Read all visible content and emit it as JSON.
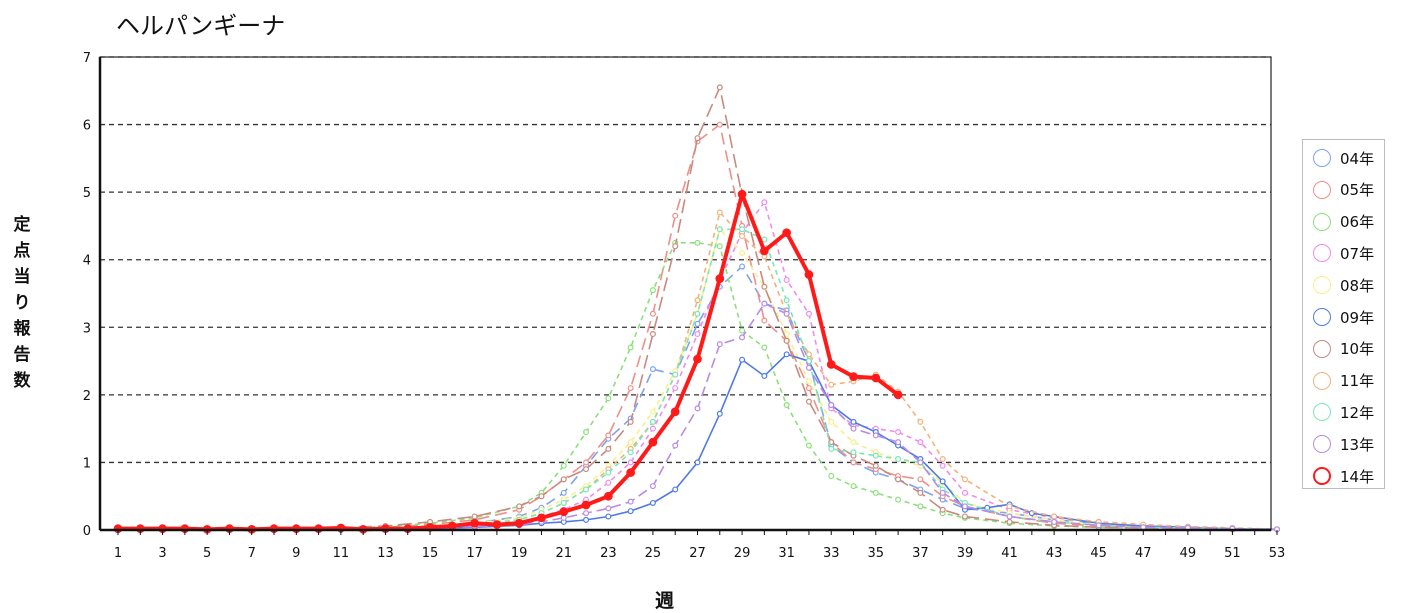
{
  "chart_data": {
    "type": "line",
    "title": "ヘルパンギーナ",
    "xlabel": "週",
    "ylabel": "定点当り報告数",
    "xlim": [
      1,
      53
    ],
    "ylim": [
      0,
      7
    ],
    "x_ticks": [
      1,
      3,
      5,
      7,
      9,
      11,
      13,
      15,
      17,
      19,
      21,
      23,
      25,
      27,
      29,
      31,
      33,
      35,
      37,
      39,
      41,
      43,
      45,
      47,
      49,
      51,
      53
    ],
    "y_ticks": [
      0,
      1,
      2,
      3,
      4,
      5,
      6,
      7
    ],
    "grid": "horizontal-dashed",
    "legend_position": "right",
    "series": [
      {
        "name": "04年",
        "color": "#7da3f0",
        "dash": "10,6",
        "x": [
          1,
          3,
          5,
          7,
          9,
          11,
          13,
          15,
          17,
          19,
          20,
          21,
          22,
          23,
          24,
          25,
          26,
          27,
          28,
          29,
          30,
          31,
          32,
          33,
          34,
          35,
          36,
          37,
          38,
          39,
          41,
          43,
          45,
          47,
          49,
          51,
          53
        ],
        "values": [
          0,
          0,
          0,
          0,
          0,
          0.02,
          0.03,
          0.05,
          0.1,
          0.2,
          0.33,
          0.55,
          0.95,
          1.35,
          1.65,
          2.38,
          2.3,
          3.05,
          3.6,
          3.9,
          3.35,
          3.25,
          2.5,
          1.25,
          1.0,
          0.85,
          0.75,
          0.6,
          0.45,
          0.32,
          0.25,
          0.15,
          0.1,
          0.05,
          0.03,
          0.02,
          0.01
        ]
      },
      {
        "name": "05年",
        "color": "#ef8f8a",
        "dash": "12,6",
        "x": [
          1,
          3,
          5,
          7,
          9,
          11,
          13,
          15,
          17,
          19,
          20,
          21,
          22,
          23,
          24,
          25,
          26,
          27,
          28,
          29,
          30,
          31,
          32,
          33,
          34,
          35,
          36,
          37,
          38,
          39,
          41,
          43,
          45,
          47,
          49,
          51,
          53
        ],
        "values": [
          0,
          0,
          0,
          0,
          0,
          0.02,
          0.04,
          0.08,
          0.15,
          0.3,
          0.5,
          0.75,
          1.0,
          1.4,
          2.1,
          3.2,
          4.65,
          5.75,
          6.0,
          4.5,
          3.1,
          2.8,
          2.1,
          1.3,
          1.0,
          0.9,
          0.8,
          0.75,
          0.5,
          0.35,
          0.2,
          0.1,
          0.06,
          0.04,
          0.02,
          0.01,
          0.01
        ]
      },
      {
        "name": "06年",
        "color": "#8be07a",
        "dash": "5,4",
        "x": [
          1,
          3,
          5,
          7,
          9,
          11,
          13,
          15,
          17,
          19,
          20,
          21,
          22,
          23,
          24,
          25,
          26,
          27,
          28,
          29,
          30,
          31,
          32,
          33,
          34,
          35,
          36,
          37,
          38,
          39,
          41,
          43,
          45,
          47,
          49,
          51,
          53
        ],
        "values": [
          0,
          0,
          0,
          0.01,
          0.02,
          0.03,
          0.05,
          0.1,
          0.18,
          0.35,
          0.55,
          0.95,
          1.45,
          1.95,
          2.7,
          3.55,
          4.25,
          4.25,
          4.2,
          2.95,
          2.7,
          1.85,
          1.25,
          0.8,
          0.65,
          0.55,
          0.45,
          0.35,
          0.25,
          0.18,
          0.1,
          0.06,
          0.04,
          0.03,
          0.02,
          0.01,
          0.01
        ]
      },
      {
        "name": "07年",
        "color": "#ef8bef",
        "dash": "5,4",
        "x": [
          1,
          3,
          5,
          7,
          9,
          11,
          13,
          15,
          17,
          19,
          20,
          21,
          22,
          23,
          24,
          25,
          26,
          27,
          28,
          29,
          30,
          31,
          32,
          33,
          34,
          35,
          36,
          37,
          38,
          39,
          41,
          43,
          45,
          47,
          49,
          51,
          53
        ],
        "values": [
          0,
          0,
          0,
          0,
          0,
          0.01,
          0.02,
          0.04,
          0.08,
          0.12,
          0.2,
          0.3,
          0.45,
          0.7,
          1.0,
          1.5,
          2.1,
          2.9,
          3.7,
          4.4,
          4.85,
          3.7,
          3.2,
          1.8,
          1.55,
          1.5,
          1.45,
          1.3,
          0.95,
          0.55,
          0.3,
          0.18,
          0.12,
          0.08,
          0.05,
          0.03,
          0.01
        ]
      },
      {
        "name": "08年",
        "color": "#f5f08a",
        "dash": "5,4",
        "x": [
          1,
          3,
          5,
          7,
          9,
          11,
          13,
          15,
          17,
          19,
          20,
          21,
          22,
          23,
          24,
          25,
          26,
          27,
          28,
          29,
          30,
          31,
          32,
          33,
          34,
          35,
          36,
          37,
          38,
          39,
          41,
          43,
          45,
          47,
          49,
          51,
          53
        ],
        "values": [
          0,
          0,
          0,
          0,
          0,
          0.01,
          0.02,
          0.05,
          0.1,
          0.18,
          0.3,
          0.45,
          0.65,
          0.95,
          1.3,
          1.75,
          2.35,
          3.2,
          4.45,
          4.1,
          3.6,
          2.9,
          2.2,
          1.6,
          1.3,
          1.15,
          1.05,
          0.95,
          0.7,
          0.4,
          0.25,
          0.15,
          0.08,
          0.05,
          0.03,
          0.02,
          0.01
        ]
      },
      {
        "name": "09年",
        "color": "#4f7ae6",
        "dash": "",
        "x": [
          1,
          3,
          5,
          7,
          9,
          11,
          13,
          15,
          17,
          19,
          20,
          21,
          22,
          23,
          24,
          25,
          26,
          27,
          28,
          29,
          30,
          31,
          32,
          33,
          34,
          35,
          36,
          37,
          38,
          39,
          40,
          41,
          42,
          43,
          45,
          47,
          49,
          51,
          53
        ],
        "values": [
          0,
          0,
          0,
          0,
          0,
          0,
          0.01,
          0.02,
          0.04,
          0.07,
          0.1,
          0.12,
          0.15,
          0.2,
          0.28,
          0.4,
          0.6,
          1.0,
          1.72,
          2.52,
          2.28,
          2.6,
          2.5,
          1.85,
          1.6,
          1.45,
          1.25,
          1.05,
          0.72,
          0.3,
          0.33,
          0.38,
          0.25,
          0.2,
          0.1,
          0.06,
          0.04,
          0.02,
          0.01
        ]
      },
      {
        "name": "10年",
        "color": "#c88a80",
        "dash": "14,6",
        "x": [
          1,
          3,
          5,
          7,
          9,
          11,
          13,
          15,
          17,
          19,
          20,
          21,
          22,
          23,
          24,
          25,
          26,
          27,
          28,
          29,
          30,
          31,
          32,
          33,
          34,
          35,
          36,
          37,
          38,
          39,
          41,
          43,
          45,
          47,
          49,
          51,
          53
        ],
        "values": [
          0,
          0,
          0,
          0,
          0.01,
          0.03,
          0.06,
          0.12,
          0.2,
          0.35,
          0.5,
          0.75,
          0.9,
          1.2,
          1.6,
          2.9,
          4.2,
          5.8,
          6.55,
          4.95,
          3.6,
          2.8,
          1.9,
          1.3,
          1.1,
          0.95,
          0.75,
          0.55,
          0.3,
          0.2,
          0.12,
          0.07,
          0.04,
          0.03,
          0.02,
          0.01,
          0.01
        ]
      },
      {
        "name": "11年",
        "color": "#f5b07a",
        "dash": "5,4",
        "x": [
          1,
          3,
          5,
          7,
          9,
          11,
          13,
          15,
          17,
          19,
          20,
          21,
          22,
          23,
          24,
          25,
          26,
          27,
          28,
          29,
          30,
          31,
          32,
          33,
          34,
          35,
          36,
          37,
          38,
          39,
          41,
          43,
          45,
          47,
          49,
          51,
          53
        ],
        "values": [
          0,
          0,
          0,
          0,
          0,
          0.01,
          0.02,
          0.04,
          0.08,
          0.15,
          0.25,
          0.4,
          0.6,
          0.9,
          1.2,
          1.6,
          2.3,
          3.4,
          4.7,
          4.35,
          4.05,
          3.2,
          2.6,
          2.15,
          2.2,
          2.3,
          2.05,
          1.6,
          1.05,
          0.75,
          0.35,
          0.2,
          0.12,
          0.08,
          0.05,
          0.03,
          0.01
        ]
      },
      {
        "name": "12年",
        "color": "#7ae8b5",
        "dash": "5,4",
        "x": [
          1,
          3,
          5,
          7,
          9,
          11,
          13,
          15,
          17,
          19,
          20,
          21,
          22,
          23,
          24,
          25,
          26,
          27,
          28,
          29,
          30,
          31,
          32,
          33,
          34,
          35,
          36,
          37,
          38,
          39,
          41,
          43,
          45,
          47,
          49,
          51,
          53
        ],
        "values": [
          0,
          0,
          0,
          0,
          0,
          0.01,
          0.02,
          0.04,
          0.08,
          0.15,
          0.25,
          0.4,
          0.6,
          0.85,
          1.15,
          1.6,
          2.3,
          3.2,
          4.45,
          4.45,
          4.3,
          3.4,
          2.5,
          1.2,
          1.15,
          1.1,
          1.05,
          1.0,
          0.6,
          0.4,
          0.2,
          0.12,
          0.07,
          0.04,
          0.03,
          0.02,
          0.01
        ]
      },
      {
        "name": "13年",
        "color": "#b98ae6",
        "dash": "10,5",
        "x": [
          1,
          3,
          5,
          7,
          9,
          11,
          13,
          15,
          17,
          19,
          20,
          21,
          22,
          23,
          24,
          25,
          26,
          27,
          28,
          29,
          30,
          31,
          32,
          33,
          34,
          35,
          36,
          37,
          38,
          39,
          41,
          43,
          45,
          47,
          49,
          51,
          53
        ],
        "values": [
          0,
          0,
          0,
          0,
          0,
          0.01,
          0.02,
          0.03,
          0.05,
          0.08,
          0.12,
          0.18,
          0.25,
          0.32,
          0.42,
          0.65,
          1.25,
          1.8,
          2.75,
          2.85,
          3.35,
          3.2,
          2.4,
          1.85,
          1.5,
          1.4,
          1.3,
          1.0,
          0.55,
          0.35,
          0.2,
          0.12,
          0.07,
          0.04,
          0.03,
          0.02,
          0.01
        ]
      },
      {
        "name": "14年",
        "color": "#ff1a1a",
        "dash": "",
        "x": [
          1,
          2,
          3,
          4,
          5,
          6,
          7,
          8,
          9,
          10,
          11,
          12,
          13,
          14,
          15,
          16,
          17,
          18,
          19,
          20,
          21,
          22,
          23,
          24,
          25,
          26,
          27,
          28,
          29,
          30,
          31,
          32,
          33,
          34,
          35,
          36
        ],
        "values": [
          0.02,
          0.02,
          0.02,
          0.02,
          0.01,
          0.02,
          0.01,
          0.02,
          0.02,
          0.02,
          0.03,
          0.01,
          0.02,
          0.02,
          0.04,
          0.06,
          0.1,
          0.08,
          0.1,
          0.18,
          0.27,
          0.37,
          0.5,
          0.85,
          1.3,
          1.75,
          2.53,
          3.72,
          4.97,
          4.13,
          4.4,
          3.78,
          2.45,
          2.27,
          2.25,
          2.0
        ]
      }
    ]
  }
}
